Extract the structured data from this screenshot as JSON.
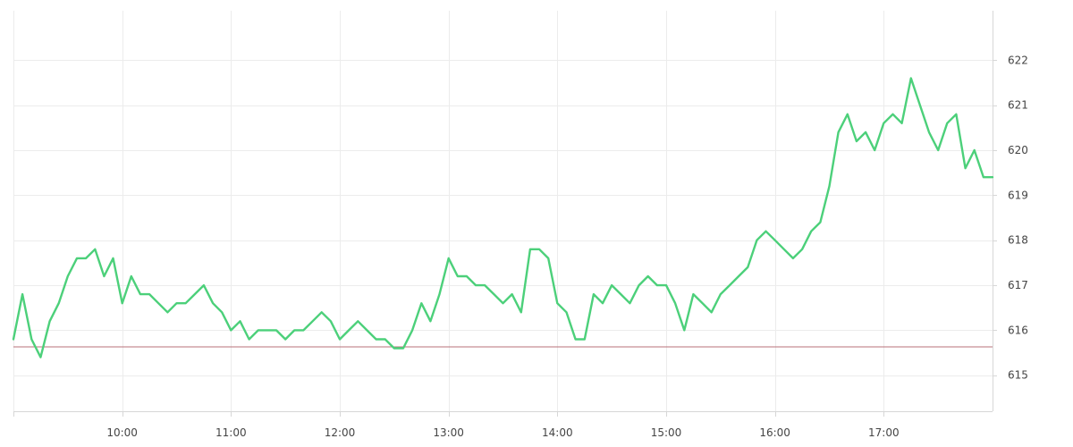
{
  "chart_data": {
    "type": "line",
    "title": "",
    "xlabel": "",
    "ylabel": "",
    "x_start": "09:00",
    "x_end": "17:55",
    "xlim": [
      "09:00",
      "18:00"
    ],
    "ylim": [
      614.2,
      623.1
    ],
    "x_ticks": [
      "10:00",
      "11:00",
      "12:00",
      "13:00",
      "14:00",
      "15:00",
      "16:00",
      "17:00"
    ],
    "y_ticks": [
      615,
      616,
      617,
      618,
      619,
      620,
      621,
      622
    ],
    "grid": true,
    "legend": "none",
    "reference_line": {
      "value": 615.63,
      "color": "#b9707a"
    },
    "series": [
      {
        "color": "#4cd07a",
        "sample_interval_minutes": 5,
        "values": [
          615.8,
          616.8,
          615.8,
          615.4,
          616.2,
          616.6,
          617.2,
          617.6,
          617.6,
          617.8,
          617.2,
          617.6,
          616.6,
          617.2,
          616.8,
          616.8,
          616.6,
          616.4,
          616.6,
          616.6,
          616.8,
          617.0,
          616.6,
          616.4,
          616.0,
          616.2,
          615.8,
          616.0,
          616.0,
          616.0,
          615.8,
          616.0,
          616.0,
          616.2,
          616.4,
          616.2,
          615.8,
          616.0,
          616.2,
          616.0,
          615.8,
          615.8,
          615.6,
          615.6,
          616.0,
          616.6,
          616.2,
          616.8,
          617.6,
          617.2,
          617.2,
          617.0,
          617.0,
          616.8,
          616.6,
          616.8,
          616.4,
          617.8,
          617.8,
          617.6,
          616.6,
          616.4,
          615.8,
          615.8,
          616.8,
          616.6,
          617.0,
          616.8,
          616.6,
          617.0,
          617.2,
          617.0,
          617.0,
          616.6,
          616.0,
          616.8,
          616.6,
          616.4,
          616.8,
          617.0,
          617.2,
          617.4,
          618.0,
          618.2,
          618.0,
          617.8,
          617.6,
          617.8,
          618.2,
          618.4,
          619.2,
          620.4,
          620.8,
          620.2,
          620.4,
          620.0,
          620.6,
          620.8,
          620.6,
          621.6,
          621.0,
          620.4,
          620.0,
          620.6,
          620.8,
          619.6,
          620.0,
          619.4,
          619.4
        ]
      }
    ]
  }
}
